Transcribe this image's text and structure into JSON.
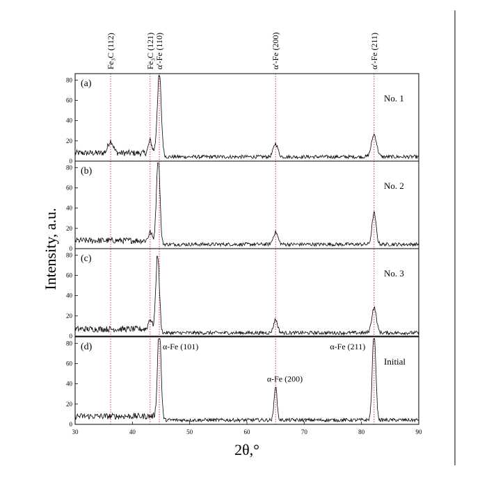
{
  "chart_data": {
    "type": "line",
    "xlabel": "2θ,°",
    "ylabel": "Intensity, a.u.",
    "xlim": [
      30,
      90
    ],
    "x_ticks": [
      30,
      40,
      50,
      60,
      70,
      80,
      90
    ],
    "y_ticks": [
      0,
      20,
      40,
      60,
      80
    ],
    "ylim": [
      0,
      85
    ],
    "grid": false,
    "reference_lines": [
      {
        "label": "Fe₃C (112)",
        "x": 36.2
      },
      {
        "label": "Fe₃C (121)",
        "x": 43.1
      },
      {
        "label": "α'-Fe (110)",
        "x": 44.7
      },
      {
        "label": "α'-Fe (200)",
        "x": 65.0
      },
      {
        "label": "α'-Fe (211)",
        "x": 82.2
      }
    ],
    "panels": [
      {
        "letter": "(a)",
        "sample": "No. 1",
        "baseline": 4,
        "peaks": [
          {
            "x": 36.2,
            "y": 12,
            "w": 0.45
          },
          {
            "x": 43.1,
            "y": 12,
            "w": 0.3
          },
          {
            "x": 44.7,
            "y": 78,
            "w": 0.35
          },
          {
            "x": 65.0,
            "y": 13,
            "w": 0.4
          },
          {
            "x": 82.2,
            "y": 22,
            "w": 0.45
          }
        ]
      },
      {
        "letter": "(b)",
        "sample": "No. 2",
        "baseline": 4,
        "peaks": [
          {
            "x": 43.1,
            "y": 8,
            "w": 0.3
          },
          {
            "x": 44.5,
            "y": 84,
            "w": 0.3
          },
          {
            "x": 65.0,
            "y": 12,
            "w": 0.4
          },
          {
            "x": 82.2,
            "y": 31,
            "w": 0.35
          }
        ]
      },
      {
        "letter": "(c)",
        "sample": "No. 3",
        "baseline": 3,
        "peaks": [
          {
            "x": 43.1,
            "y": 10,
            "w": 0.3
          },
          {
            "x": 44.4,
            "y": 74,
            "w": 0.3
          },
          {
            "x": 65.0,
            "y": 13,
            "w": 0.35
          },
          {
            "x": 82.2,
            "y": 25,
            "w": 0.4
          }
        ]
      },
      {
        "letter": "(d)",
        "sample": "Initial",
        "baseline": 4,
        "peaks": [
          {
            "x": 44.7,
            "y": 92,
            "w": 0.3
          },
          {
            "x": 65.0,
            "y": 34,
            "w": 0.25
          },
          {
            "x": 82.2,
            "y": 90,
            "w": 0.3
          }
        ],
        "annotations": [
          {
            "text": "α-Fe (101)",
            "x": 45.3,
            "y": 74
          },
          {
            "text": "α-Fe (200)",
            "x": 63.5,
            "y": 42
          },
          {
            "text": "α-Fe (211)",
            "x": 74.5,
            "y": 74
          }
        ]
      }
    ]
  }
}
